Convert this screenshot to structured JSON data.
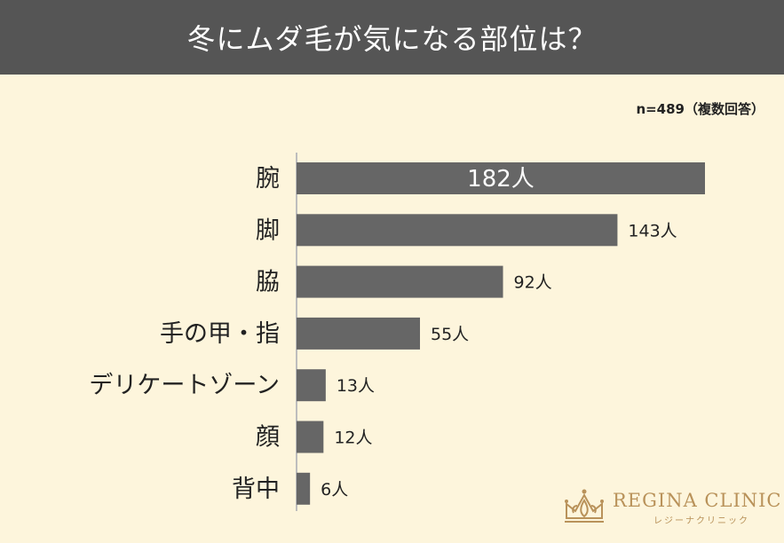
{
  "title": "冬にムダ毛が気になる部位は？",
  "sample_note": "n=489（複数回答）",
  "colors": {
    "title_bg": "#555555",
    "background": "#fdf5dc",
    "bar": "#666666",
    "axis": "#bdbdbd",
    "logo": "#b9925a"
  },
  "chart_data": {
    "type": "bar",
    "orientation": "horizontal",
    "title": "冬にムダ毛が気になる部位は？",
    "categories": [
      "腕",
      "脚",
      "脇",
      "手の甲・指",
      "デリケートゾーン",
      "顔",
      "背中"
    ],
    "values": [
      182,
      143,
      92,
      55,
      13,
      12,
      6
    ],
    "value_labels": [
      "182人",
      "143人",
      "92人",
      "55人",
      "13人",
      "12人",
      "6人"
    ],
    "unit": "人",
    "xlim": [
      0,
      182
    ],
    "grid": false,
    "legend": "none"
  },
  "logo": {
    "name": "REGINA CLINIC",
    "kana": "レジーナクリニック"
  }
}
